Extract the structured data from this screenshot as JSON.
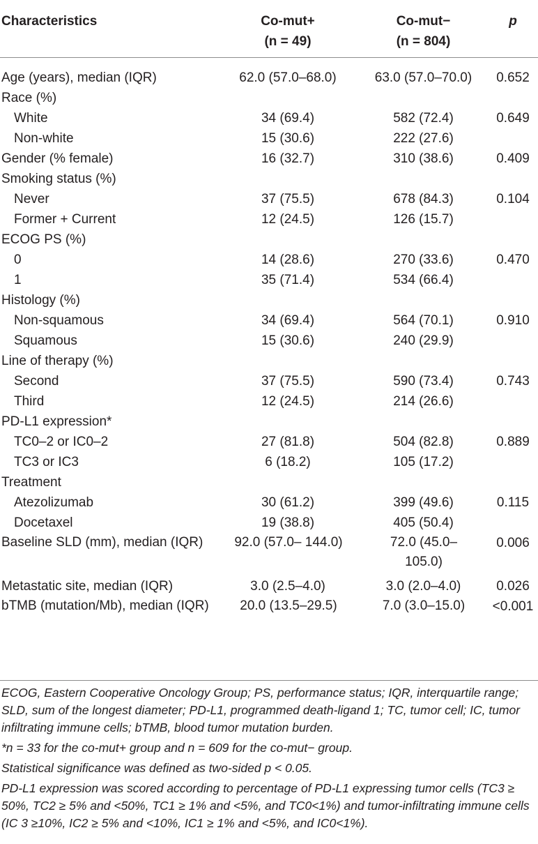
{
  "header": {
    "characteristics": "Characteristics",
    "col1_name": "Co-mut+",
    "col1_n": "(n = 49)",
    "col2_name": "Co-mut−",
    "col2_n": "(n = 804)",
    "col3": "p"
  },
  "rows": [
    {
      "label": "Age (years), median (IQR)",
      "a": "62.0 (57.0–68.0)",
      "b": "63.0 (57.0–70.0)",
      "p": "0.652"
    },
    {
      "label": "Race (%)",
      "a": "",
      "b": "",
      "p": ""
    },
    {
      "label": "White",
      "a": "34 (69.4)",
      "b": "582 (72.4)",
      "p": "0.649"
    },
    {
      "label": "Non-white",
      "a": "15 (30.6)",
      "b": "222 (27.6)",
      "p": ""
    },
    {
      "label": "Gender (% female)",
      "a": "16 (32.7)",
      "b": "310 (38.6)",
      "p": "0.409"
    },
    {
      "label": "Smoking status (%)",
      "a": "",
      "b": "",
      "p": ""
    },
    {
      "label": "Never",
      "a": "37 (75.5)",
      "b": "678 (84.3)",
      "p": "0.104"
    },
    {
      "label": "Former + Current",
      "a": "12 (24.5)",
      "b": "126 (15.7)",
      "p": ""
    },
    {
      "label": "ECOG PS (%)",
      "a": "",
      "b": "",
      "p": ""
    },
    {
      "label": "0",
      "a": "14 (28.6)",
      "b": "270 (33.6)",
      "p": "0.470"
    },
    {
      "label": "1",
      "a": "35 (71.4)",
      "b": "534 (66.4)",
      "p": ""
    },
    {
      "label": "Histology (%)",
      "a": "",
      "b": "",
      "p": ""
    },
    {
      "label": "Non-squamous",
      "a": "34 (69.4)",
      "b": "564 (70.1)",
      "p": "0.910"
    },
    {
      "label": "Squamous",
      "a": "15 (30.6)",
      "b": "240 (29.9)",
      "p": ""
    },
    {
      "label": "Line of therapy (%)",
      "a": "",
      "b": "",
      "p": ""
    },
    {
      "label": "Second",
      "a": "37 (75.5)",
      "b": "590 (73.4)",
      "p": "0.743"
    },
    {
      "label": "Third",
      "a": "12 (24.5)",
      "b": "214 (26.6)",
      "p": ""
    },
    {
      "label": "PD-L1 expression*",
      "a": "",
      "b": "",
      "p": ""
    },
    {
      "label": "TC0–2 or IC0–2",
      "a": "27 (81.8)",
      "b": "504 (82.8)",
      "p": "0.889"
    },
    {
      "label": "TC3 or IC3",
      "a": "6 (18.2)",
      "b": "105 (17.2)",
      "p": ""
    },
    {
      "label": "Treatment",
      "a": "",
      "b": "",
      "p": ""
    },
    {
      "label": "Atezolizumab",
      "a": "30 (61.2)",
      "b": "399 (49.6)",
      "p": "0.115"
    },
    {
      "label": "Docetaxel",
      "a": "19 (38.8)",
      "b": "405 (50.4)",
      "p": ""
    },
    {
      "label": "Baseline SLD (mm), median (IQR)",
      "a": "92.0 (57.0– 144.0)",
      "b": "72.0 (45.0– 105.0)",
      "p": "0.006"
    },
    {
      "label": "Metastatic site, median (IQR)",
      "a": "3.0 (2.5–4.0)",
      "b": "3.0 (2.0–4.0)",
      "p": "0.026"
    },
    {
      "label": "bTMB (mutation/Mb), median (IQR)",
      "a": "20.0 (13.5–29.5)",
      "b": "7.0 (3.0–15.0)",
      "p": "<0.001"
    }
  ],
  "notes": {
    "abbreviations": "ECOG, Eastern Cooperative Oncology Group; PS, performance status; IQR, interquartile range; SLD, sum of the longest diameter; PD-L1, programmed death-ligand 1; TC, tumor cell; IC, tumor infiltrating immune cells; bTMB, blood tumor mutation burden.",
    "asterisk": "*n = 33 for the co-mut+ group and n = 609 for the co-mut− group.",
    "significance": "Statistical significance was defined as two-sided p < 0.05.",
    "pdl1_scoring": "PD-L1 expression was scored according to percentage of PD-L1 expressing tumor cells (TC3 ≥ 50%, TC2 ≥ 5% and <50%, TC1 ≥ 1% and <5%, and TC0<1%) and tumor-infiltrating immune cells (IC 3 ≥10%, IC2 ≥ 5% and <10%, IC1 ≥ 1% and <5%, and IC0<1%)."
  }
}
